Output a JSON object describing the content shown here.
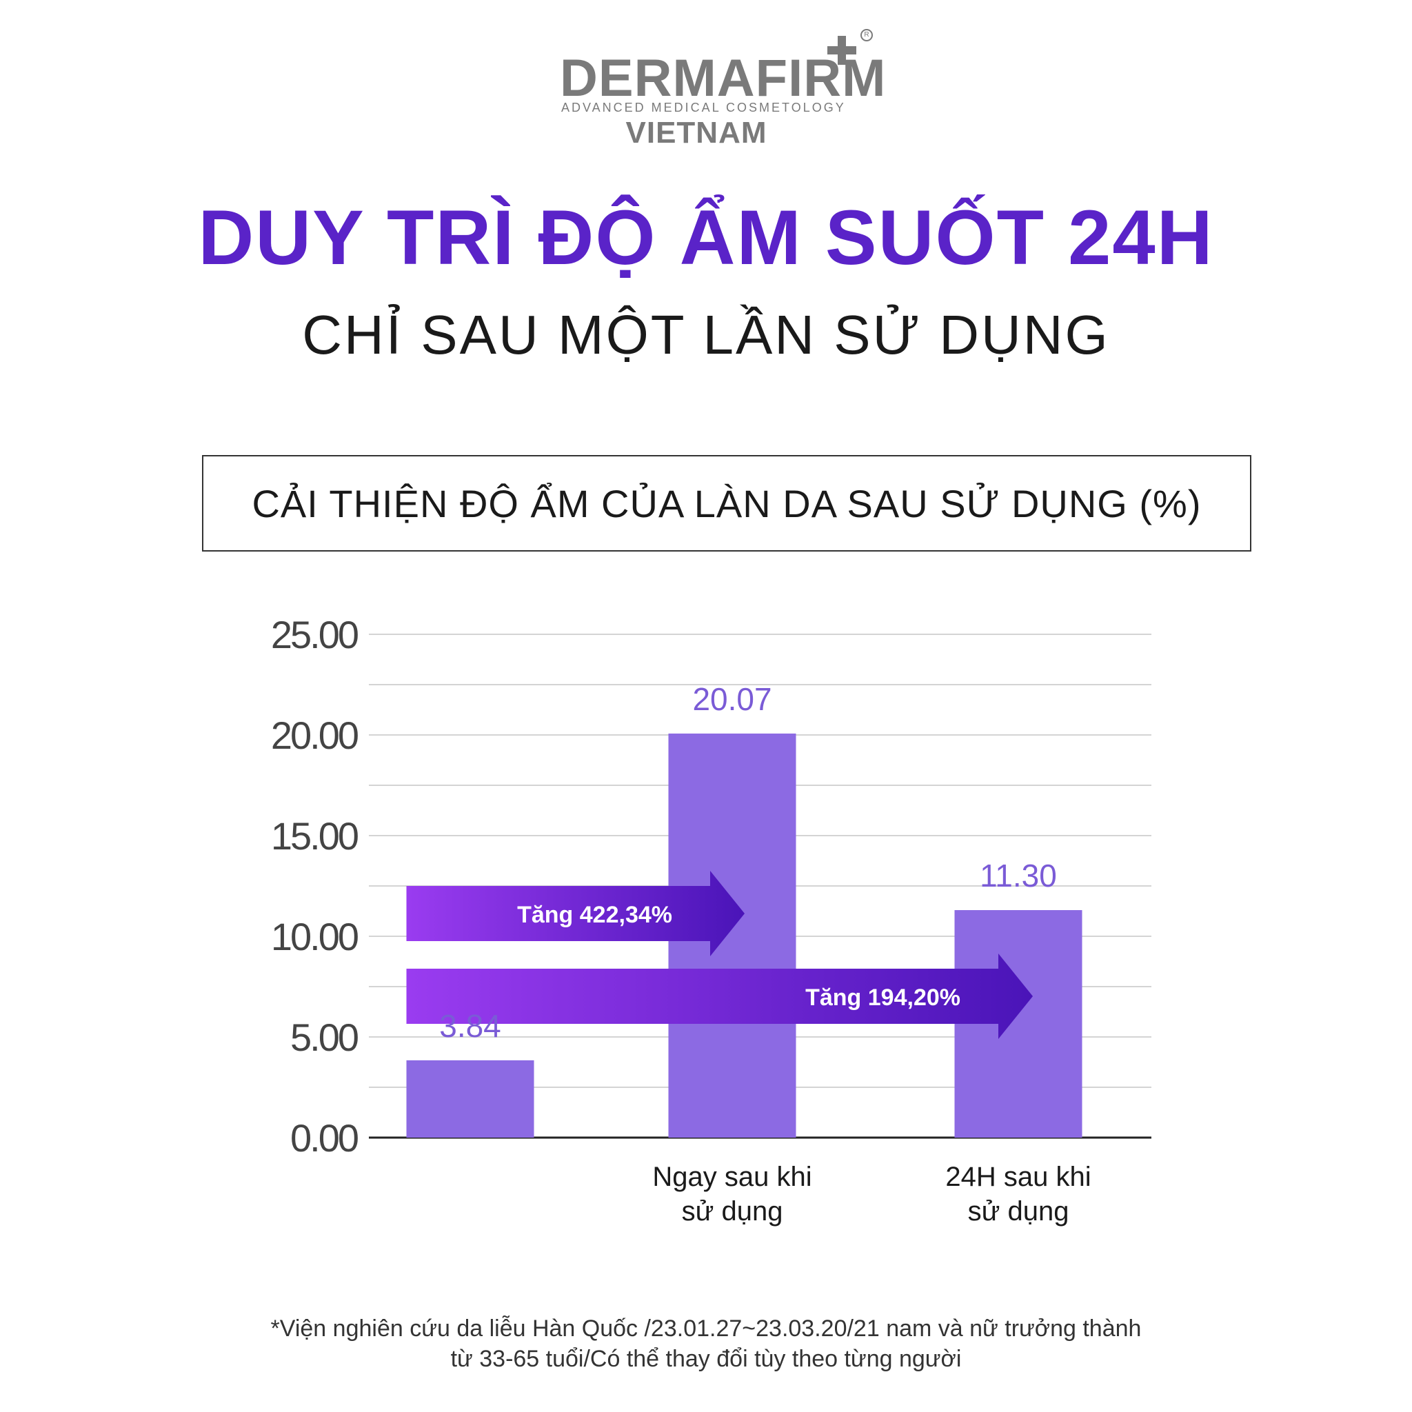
{
  "brand": {
    "name": "DERMAFIRM",
    "tagline": "ADVANCED MEDICAL COSMETOLOGY",
    "country": "VIETNAM",
    "registered_mark": "R"
  },
  "headline": "DUY TRÌ ĐỘ ẨM SUỐT 24H",
  "subheadline": "CHỈ SAU MỘT LẦN SỬ DỤNG",
  "colors": {
    "accent": "#5a23c8",
    "bar": "#8c6ae3",
    "value_label": "#7a5bd6",
    "arrow_start": "#9a3cf0",
    "arrow_end": "#4a14b8"
  },
  "chart_data": {
    "type": "bar",
    "title": "CẢI THIỆN ĐỘ ẨM CỦA LÀN DA SAU SỬ DỤNG (%)",
    "categories": [
      "",
      "Ngay sau khi\nsử dụng",
      "24H sau khi\nsử dụng"
    ],
    "values": [
      3.84,
      20.07,
      11.3
    ],
    "value_labels": [
      "3.84",
      "20.07",
      "11.30"
    ],
    "ylim": [
      0,
      25
    ],
    "yticks": [
      "0.00",
      "5.00",
      "10.00",
      "15.00",
      "20.00",
      "25.00"
    ],
    "grid": true,
    "annotations": [
      {
        "text": "Tăng 422,34%",
        "from_category": 0,
        "to_category": 1,
        "arrow": "right"
      },
      {
        "text": "Tăng 194,20%",
        "from_category": 0,
        "to_category": 2,
        "arrow": "right"
      }
    ]
  },
  "footnote": {
    "line1": "*Viện nghiên cứu da liễu Hàn Quốc /23.01.27~23.03.20/21 nam và nữ trưởng thành",
    "line2": "từ 33-65 tuổi/Có thể thay đổi tùy theo từng người"
  }
}
